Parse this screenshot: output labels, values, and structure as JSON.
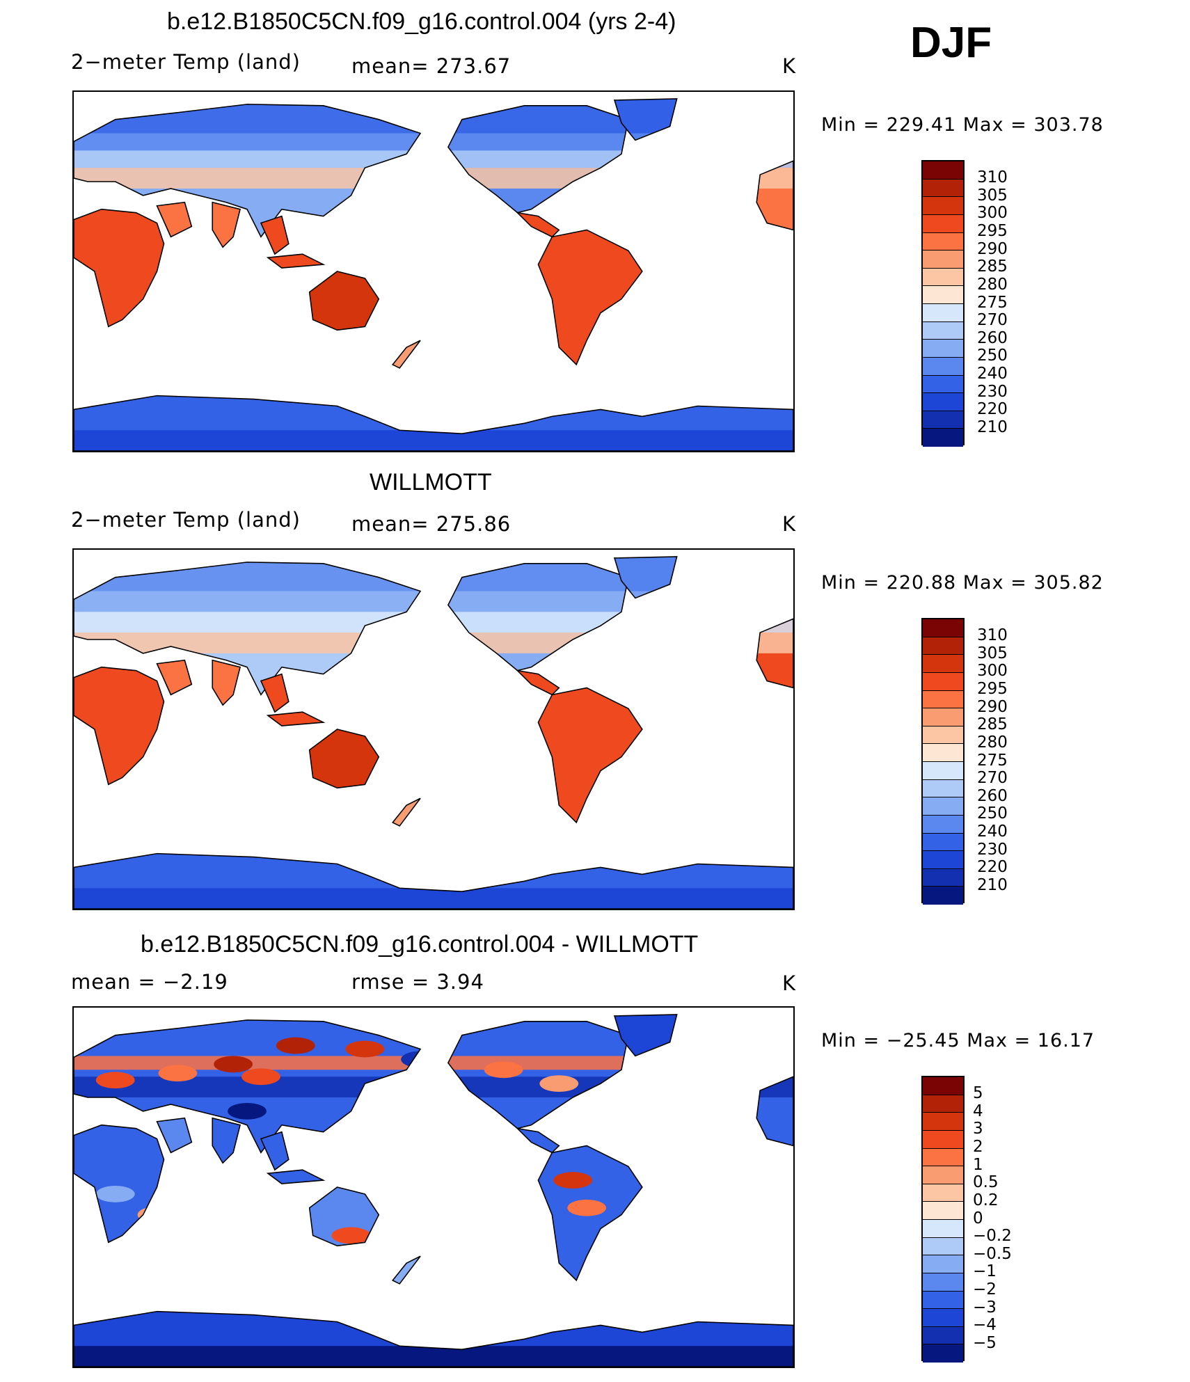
{
  "season": "DJF",
  "units": "K",
  "colors": {
    "temp_scale": [
      "#7a0403",
      "#b22207",
      "#d5350d",
      "#ef4a1f",
      "#fb7243",
      "#fa9c72",
      "#fcc6a5",
      "#fde6d3",
      "#d6e7fb",
      "#aecbf7",
      "#86acf3",
      "#5b88ee",
      "#3362e6",
      "#1d45d6",
      "#1230b0",
      "#06187f"
    ],
    "diff_scale": [
      "#7a0403",
      "#b22207",
      "#d5350d",
      "#ef4a1f",
      "#fb7243",
      "#fa9c72",
      "#fcc6a5",
      "#fde6d3",
      "#d6e7fb",
      "#aecbf7",
      "#86acf3",
      "#5b88ee",
      "#3362e6",
      "#1d45d6",
      "#1230b0",
      "#06187f"
    ]
  },
  "panels": [
    {
      "title": "b.e12.B1850C5CN.f09_g16.control.004 (yrs 2-4)",
      "left_label": "2−meter Temp (land)",
      "center_label": "mean=  273.67",
      "units": "K",
      "min_max": "Min  =  229.41  Max  =  303.78",
      "ticks": [
        "310",
        "305",
        "300",
        "295",
        "290",
        "285",
        "280",
        "275",
        "270",
        "260",
        "250",
        "240",
        "230",
        "220",
        "210"
      ],
      "variant": "model"
    },
    {
      "title": "WILLMOTT",
      "left_label": "2−meter Temp (land)",
      "center_label": "mean=  275.86",
      "units": "K",
      "min_max": "Min  =  220.88  Max  =  305.82",
      "ticks": [
        "310",
        "305",
        "300",
        "295",
        "290",
        "285",
        "280",
        "275",
        "270",
        "260",
        "250",
        "240",
        "230",
        "220",
        "210"
      ],
      "variant": "obs"
    },
    {
      "title": "b.e12.B1850C5CN.f09_g16.control.004 - WILLMOTT",
      "left_label": "mean =    −2.19",
      "center_label": "rmse =     3.94",
      "units": "K",
      "min_max": "Min  =  −25.45  Max  =    16.17",
      "ticks": [
        "5",
        "4",
        "3",
        "2",
        "1",
        "0.5",
        "0.2",
        "0",
        "−0.2",
        "−0.5",
        "−1",
        "−2",
        "−3",
        "−4",
        "−5"
      ],
      "variant": "diff"
    }
  ]
}
